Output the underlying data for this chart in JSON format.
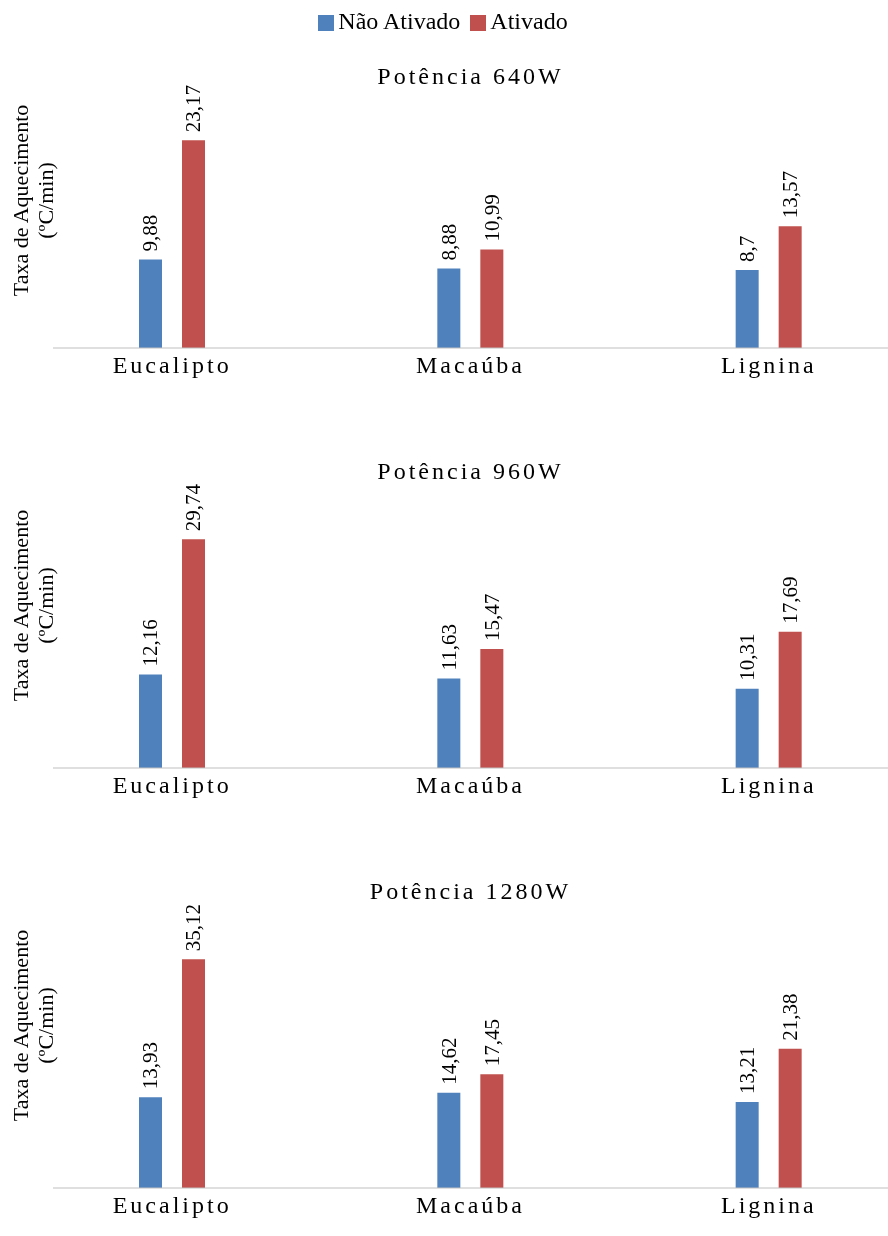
{
  "chart_data": [
    {
      "type": "bar",
      "title": "Potência 640W",
      "ylabel": "Taxa de Aquecimento (ºC/min)",
      "categories": [
        "Eucalipto",
        "Macaúba",
        "Lignina"
      ],
      "legend": "top",
      "series": [
        {
          "name": "Não Ativado",
          "color": "#4f81bd",
          "values": [
            9.88,
            8.88,
            8.7
          ],
          "value_labels": [
            "9,88",
            "8,88",
            "8,7"
          ]
        },
        {
          "name": "Ativado",
          "color": "#c0504d",
          "values": [
            23.17,
            10.99,
            13.57
          ],
          "value_labels": [
            "23,17",
            "10,99",
            "13,57"
          ]
        }
      ]
    },
    {
      "type": "bar",
      "title": "Potência 960W",
      "ylabel": "Taxa de Aquecimento (ºC/min)",
      "categories": [
        "Eucalipto",
        "Macaúba",
        "Lignina"
      ],
      "series": [
        {
          "color": "#4f81bd",
          "values": [
            12.16,
            11.63,
            10.31
          ],
          "value_labels": [
            "12,16",
            "11,63",
            "10,31"
          ]
        },
        {
          "color": "#c0504d",
          "values": [
            29.74,
            15.47,
            17.69
          ],
          "value_labels": [
            "29,74",
            "15,47",
            "17,69"
          ]
        }
      ]
    },
    {
      "type": "bar",
      "title": "Potência 1280W",
      "ylabel": "Taxa de Aquecimento (ºC/min)",
      "categories": [
        "Eucalipto",
        "Macaúba",
        "Lignina"
      ],
      "series": [
        {
          "color": "#4f81bd",
          "values": [
            13.93,
            14.62,
            13.21
          ],
          "value_labels": [
            "13,93",
            "14,62",
            "13,21"
          ]
        },
        {
          "color": "#c0504d",
          "values": [
            35.12,
            17.45,
            21.38
          ],
          "value_labels": [
            "35,12",
            "17,45",
            "21,38"
          ]
        }
      ]
    }
  ]
}
